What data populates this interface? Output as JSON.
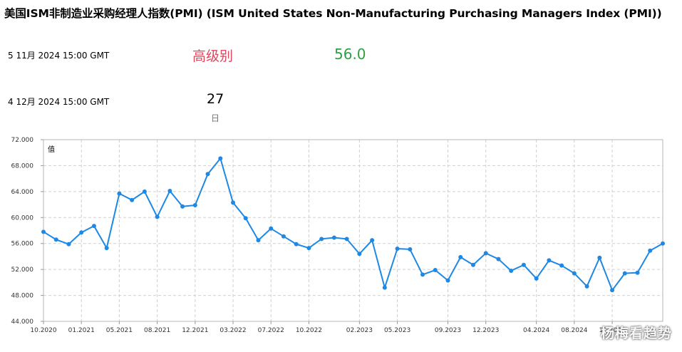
{
  "header": {
    "title": "美国ISM非制造业采购经理人指数(PMI) (ISM United States Non-Manufacturing Purchasing Managers Index (PMI))"
  },
  "release": {
    "date": "5 11月 2024 15:00 GMT",
    "importance_label": "高级别",
    "actual_value": "56.0"
  },
  "next_release": {
    "date": "4 12月 2024 15:00 GMT",
    "countdown_value": "27",
    "countdown_unit": "日"
  },
  "watermark": "杨梅看趋势",
  "colors": {
    "line": "#1e88e5",
    "importance": "#e0475e",
    "actual": "#2ea043",
    "grid": "#cfcfcf"
  },
  "chart_data": {
    "type": "line",
    "ylabel": "值",
    "ylim": [
      44,
      72
    ],
    "y_ticks": [
      "44.000",
      "48.000",
      "52.000",
      "56.000",
      "60.000",
      "64.000",
      "68.000",
      "72.000"
    ],
    "x_tick_labels": [
      "10.2020",
      "01.2021",
      "05.2021",
      "08.2021",
      "12.2021",
      "03.2022",
      "07.2022",
      "10.2022",
      "02.2023",
      "05.2023",
      "09.2023",
      "12.2023",
      "04.2024",
      "08.2024",
      "11.2024"
    ],
    "x_tick_indices": [
      0,
      3,
      6,
      9,
      12,
      15,
      18,
      21,
      25,
      28,
      32,
      35,
      39,
      42,
      45
    ],
    "grid": true,
    "series": [
      {
        "values": [
          57.8,
          56.6,
          55.9,
          57.7,
          58.7,
          55.3,
          63.7,
          62.7,
          64.0,
          60.1,
          64.1,
          61.7,
          61.9,
          66.7,
          69.1,
          62.3,
          59.9,
          56.5,
          58.3,
          57.1,
          55.9,
          55.3,
          56.7,
          56.9,
          56.7,
          54.4,
          56.5,
          49.2,
          55.2,
          55.1,
          51.2,
          51.9,
          50.3,
          53.9,
          52.7,
          54.5,
          53.6,
          51.8,
          52.7,
          50.6,
          53.4,
          52.6,
          51.4,
          49.4,
          53.8,
          48.8,
          51.4,
          51.5,
          54.9,
          56.0
        ]
      }
    ]
  }
}
